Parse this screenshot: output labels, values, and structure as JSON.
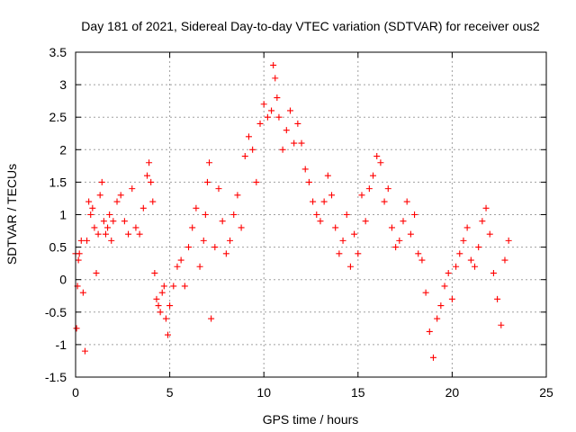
{
  "chart_data": {
    "type": "scatter",
    "title": "Day 181 of 2021, Sidereal Day-to-day VTEC variation (SDTVAR) for receiver ous2",
    "xlabel": "GPS time / hours",
    "ylabel": "SDTVAR / TECUs",
    "xlim": [
      0,
      25
    ],
    "ylim": [
      -1.5,
      3.5
    ],
    "xticks": [
      "0",
      "5",
      "10",
      "15",
      "20",
      "25"
    ],
    "yticks": [
      "-1.5",
      "-1",
      "-0.5",
      "0",
      "0.5",
      "1",
      "1.5",
      "2",
      "2.5",
      "3",
      "3.5"
    ],
    "grid": true,
    "marker": "plus",
    "series": [
      {
        "name": "SDTVAR",
        "color": "#ff0000",
        "x": [
          0.0,
          0.05,
          0.1,
          0.15,
          0.2,
          0.3,
          0.4,
          0.5,
          0.6,
          0.7,
          0.8,
          0.9,
          1.0,
          1.1,
          1.2,
          1.3,
          1.4,
          1.5,
          1.6,
          1.7,
          1.8,
          1.9,
          2.0,
          2.2,
          2.4,
          2.6,
          2.8,
          3.0,
          3.2,
          3.4,
          3.6,
          3.8,
          3.9,
          4.0,
          4.1,
          4.2,
          4.3,
          4.4,
          4.5,
          4.6,
          4.7,
          4.8,
          4.9,
          5.0,
          5.2,
          5.4,
          5.6,
          5.8,
          6.0,
          6.2,
          6.4,
          6.6,
          6.8,
          6.9,
          7.0,
          7.1,
          7.2,
          7.4,
          7.6,
          7.8,
          8.0,
          8.2,
          8.4,
          8.6,
          8.8,
          9.0,
          9.2,
          9.4,
          9.6,
          9.8,
          10.0,
          10.2,
          10.4,
          10.5,
          10.6,
          10.7,
          10.8,
          11.0,
          11.2,
          11.4,
          11.6,
          11.8,
          12.0,
          12.2,
          12.4,
          12.6,
          12.8,
          13.0,
          13.2,
          13.4,
          13.6,
          13.8,
          14.0,
          14.2,
          14.4,
          14.6,
          14.8,
          15.0,
          15.2,
          15.4,
          15.6,
          15.8,
          16.0,
          16.2,
          16.4,
          16.6,
          16.8,
          17.0,
          17.2,
          17.4,
          17.6,
          17.8,
          18.0,
          18.2,
          18.4,
          18.6,
          18.8,
          19.0,
          19.2,
          19.4,
          19.6,
          19.8,
          20.0,
          20.2,
          20.4,
          20.6,
          20.8,
          21.0,
          21.2,
          21.4,
          21.6,
          21.8,
          22.0,
          22.2,
          22.4,
          22.6,
          22.8,
          23.0
        ],
        "y": [
          0.4,
          -0.75,
          -0.1,
          0.3,
          0.4,
          0.6,
          -0.2,
          -1.1,
          0.6,
          1.2,
          1.0,
          1.1,
          0.8,
          0.1,
          0.7,
          1.3,
          1.5,
          0.9,
          0.7,
          0.8,
          1.0,
          0.6,
          0.9,
          1.2,
          1.3,
          0.9,
          0.7,
          1.4,
          0.8,
          0.7,
          1.1,
          1.6,
          1.8,
          1.5,
          1.2,
          0.1,
          -0.3,
          -0.4,
          -0.5,
          -0.2,
          -0.1,
          -0.6,
          -0.85,
          -0.4,
          -0.1,
          0.2,
          0.3,
          -0.1,
          0.5,
          0.8,
          1.1,
          0.2,
          0.6,
          1.0,
          1.5,
          1.8,
          -0.6,
          0.5,
          1.4,
          0.9,
          0.4,
          0.6,
          1.0,
          1.3,
          0.8,
          1.9,
          2.2,
          2.0,
          1.5,
          2.4,
          2.7,
          2.5,
          2.6,
          3.3,
          3.1,
          2.8,
          2.5,
          2.0,
          2.3,
          2.6,
          2.1,
          2.4,
          2.1,
          1.7,
          1.5,
          1.2,
          1.0,
          0.9,
          1.2,
          1.6,
          1.3,
          0.8,
          0.4,
          0.6,
          1.0,
          0.2,
          0.7,
          0.4,
          1.3,
          0.9,
          1.4,
          1.6,
          1.9,
          1.8,
          1.2,
          1.4,
          0.8,
          0.5,
          0.6,
          0.9,
          1.2,
          0.7,
          1.0,
          0.4,
          0.3,
          -0.2,
          -0.8,
          -1.2,
          -0.6,
          -0.4,
          -0.1,
          0.1,
          -0.3,
          0.2,
          0.4,
          0.6,
          0.8,
          0.3,
          0.2,
          0.5,
          0.9,
          1.1,
          0.7,
          0.1,
          -0.3,
          -0.7,
          0.3,
          0.6
        ]
      }
    ]
  }
}
